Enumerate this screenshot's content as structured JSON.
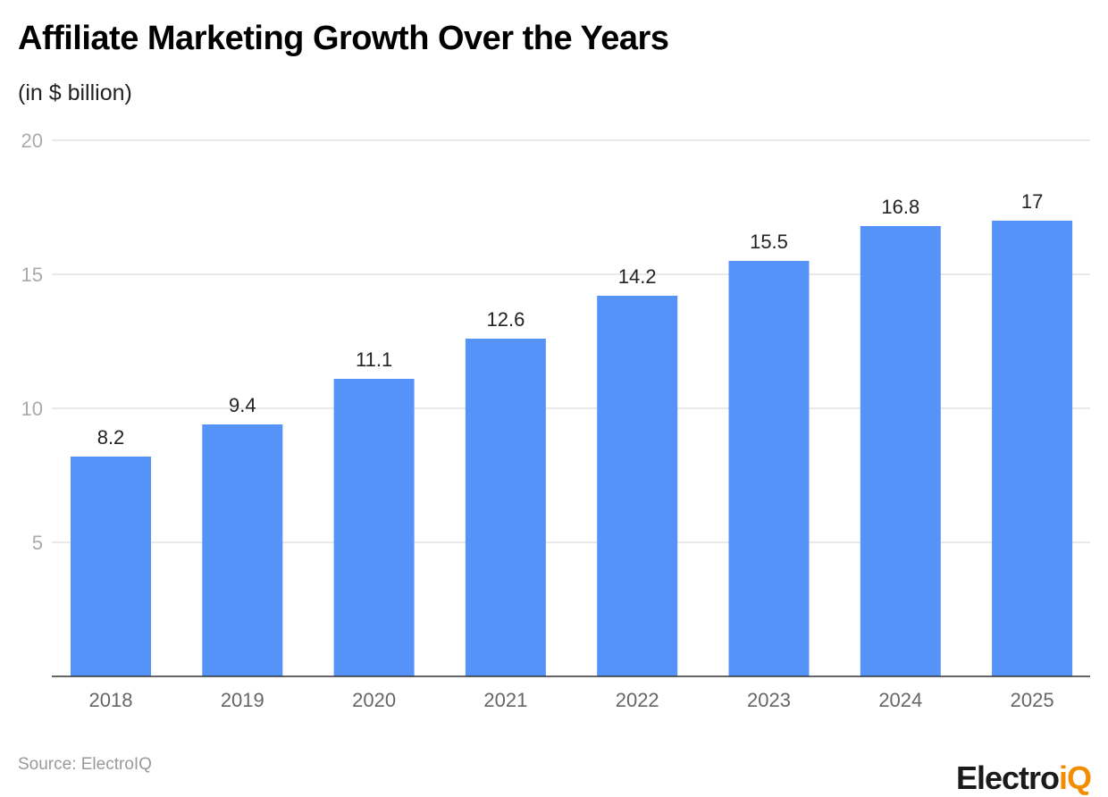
{
  "chart_data": {
    "type": "bar",
    "title": "Affiliate Marketing Growth Over the Years",
    "subtitle": "(in $ billion)",
    "categories": [
      "2018",
      "2019",
      "2020",
      "2021",
      "2022",
      "2023",
      "2024",
      "2025"
    ],
    "values": [
      8.2,
      9.4,
      11.1,
      12.6,
      14.2,
      15.5,
      16.8,
      17
    ],
    "data_labels": [
      "8.2",
      "9.4",
      "11.1",
      "12.6",
      "14.2",
      "15.5",
      "16.8",
      "17"
    ],
    "ylim": [
      0,
      20
    ],
    "yticks": [
      5,
      10,
      15,
      20
    ],
    "grid": true,
    "bar_color": "#5593f8",
    "source": "Source: ElectroIQ"
  },
  "logo": {
    "main": "Electro",
    "accent": "iQ"
  }
}
